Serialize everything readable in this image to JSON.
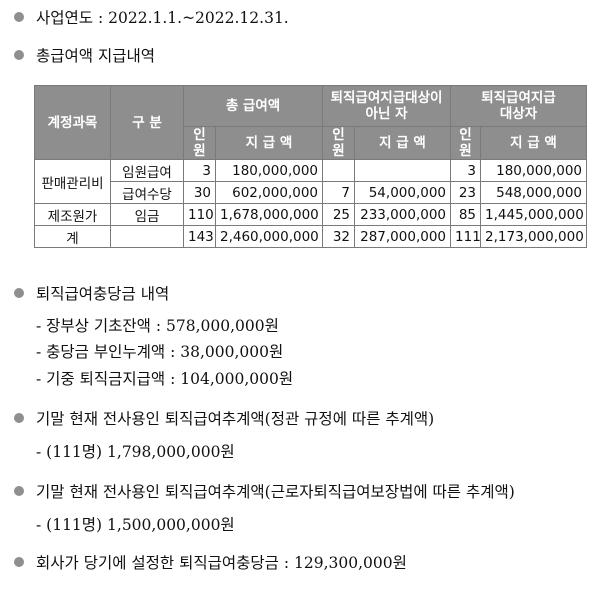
{
  "lines": {
    "business_year": "사업연도 : 2022.1.1.~2022.12.31.",
    "salary_header": "총급여액 지급내역",
    "reserve_header": "퇴직급여충당금 내역",
    "reserve_items": [
      "- 장부상 기초잔액 : 578,000,000원",
      "- 충당금 부인누계액 : 38,000,000원",
      "- 기중 퇴직금지급액 : 104,000,000원"
    ],
    "estimate1_header": "기말 현재 전사용인 퇴직급여추계액(정관 규정에 따른 추계액)",
    "estimate1_value": "- (111명) 1,798,000,000원",
    "estimate2_header": "기말 현재 전사용인 퇴직급여추계액(근로자퇴직급여보장법에 따른 추계액)",
    "estimate2_value": "- (111명) 1,500,000,000원",
    "provision": "회사가 당기에 설정한 퇴직급여충당금 : 129,300,000원"
  },
  "table": {
    "headers": {
      "account": "계정과목",
      "category": "구 분",
      "total": "총 급여액",
      "non_target_1": "퇴직급여지급대상이",
      "non_target_2": "아닌 자",
      "target_1": "퇴직급여지급",
      "target_2": "대상자",
      "count": "인원",
      "amount": "지 급 액"
    },
    "rows": [
      {
        "account": "판매관리비",
        "category": "임원급여",
        "total_n": "3",
        "total_amt": "180,000,000",
        "non_n": "",
        "non_amt": "",
        "tgt_n": "3",
        "tgt_amt": "180,000,000"
      },
      {
        "category": "급여수당",
        "total_n": "30",
        "total_amt": "602,000,000",
        "non_n": "7",
        "non_amt": "54,000,000",
        "tgt_n": "23",
        "tgt_amt": "548,000,000"
      },
      {
        "account": "제조원가",
        "category": "임금",
        "total_n": "110",
        "total_amt": "1,678,000,000",
        "non_n": "25",
        "non_amt": "233,000,000",
        "tgt_n": "85",
        "tgt_amt": "1,445,000,000"
      },
      {
        "account": "계",
        "category": "",
        "total_n": "143",
        "total_amt": "2,460,000,000",
        "non_n": "32",
        "non_amt": "287,000,000",
        "tgt_n": "111",
        "tgt_amt": "2,173,000,000"
      }
    ]
  }
}
